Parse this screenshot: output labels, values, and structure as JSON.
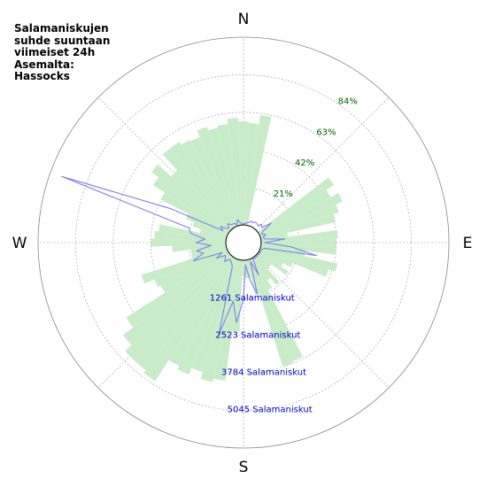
{
  "title_lines": [
    "Salamaniskujen",
    "suhde suuntaan",
    "viimeiset 24h",
    "Asemalta:",
    "Hassocks"
  ],
  "colors": {
    "bars": "#c8ecc8",
    "line": "#8080f0",
    "percent_labels": "#006400",
    "count_labels": "#0000cc",
    "grid": "#999999"
  },
  "chart_data": {
    "type": "polar",
    "title": "Salamaniskujen suhde suuntaan viimeiset 24h Asemalta: Hassocks",
    "directions": [
      "N",
      "E",
      "S",
      "W"
    ],
    "percent_ticks": [
      {
        "value": 21,
        "label": "21%"
      },
      {
        "value": 42,
        "label": "42%"
      },
      {
        "value": 63,
        "label": "63%"
      },
      {
        "value": 84,
        "label": "84%"
      }
    ],
    "count_ticks": [
      {
        "value": 1261,
        "label": "1261 Salamaniskut"
      },
      {
        "value": 2523,
        "label": "2523 Salamaniskut"
      },
      {
        "value": 3784,
        "label": "3784 Salamaniskut"
      },
      {
        "value": 5045,
        "label": "5045 Salamaniskut"
      }
    ],
    "sector_width_deg": 5,
    "series": [
      {
        "type": "bar",
        "unit": "%",
        "values": [
          [
            0,
            58
          ],
          [
            5,
            57
          ],
          [
            10,
            62
          ],
          [
            15,
            0
          ],
          [
            20,
            0
          ],
          [
            25,
            0
          ],
          [
            30,
            0
          ],
          [
            35,
            0
          ],
          [
            40,
            0
          ],
          [
            45,
            0
          ],
          [
            50,
            0
          ],
          [
            55,
            50
          ],
          [
            60,
            45
          ],
          [
            65,
            50
          ],
          [
            70,
            46
          ],
          [
            75,
            43
          ],
          [
            80,
            15
          ],
          [
            85,
            43
          ],
          [
            90,
            42
          ],
          [
            95,
            42
          ],
          [
            100,
            25
          ],
          [
            105,
            44
          ],
          [
            110,
            40
          ],
          [
            115,
            20
          ],
          [
            120,
            15
          ],
          [
            125,
            20
          ],
          [
            130,
            10
          ],
          [
            135,
            10
          ],
          [
            140,
            20
          ],
          [
            145,
            15
          ],
          [
            150,
            20
          ],
          [
            155,
            62
          ],
          [
            160,
            63
          ],
          [
            165,
            20
          ],
          [
            170,
            10
          ],
          [
            175,
            10
          ],
          [
            180,
            8
          ],
          [
            185,
            40
          ],
          [
            190,
            68
          ],
          [
            195,
            70
          ],
          [
            200,
            66
          ],
          [
            205,
            70
          ],
          [
            210,
            68
          ],
          [
            215,
            82
          ],
          [
            220,
            80
          ],
          [
            225,
            80
          ],
          [
            230,
            75
          ],
          [
            235,
            68
          ],
          [
            240,
            42
          ],
          [
            245,
            44
          ],
          [
            250,
            50
          ],
          [
            255,
            20
          ],
          [
            260,
            20
          ],
          [
            265,
            30
          ],
          [
            270,
            42
          ],
          [
            275,
            40
          ],
          [
            280,
            38
          ],
          [
            285,
            15
          ],
          [
            290,
            20
          ],
          [
            295,
            25
          ],
          [
            300,
            42
          ],
          [
            305,
            50
          ],
          [
            310,
            55
          ],
          [
            315,
            45
          ],
          [
            320,
            57
          ],
          [
            325,
            57
          ],
          [
            330,
            55
          ],
          [
            335,
            54
          ],
          [
            340,
            58
          ],
          [
            345,
            56
          ],
          [
            350,
            57
          ],
          [
            355,
            60
          ]
        ]
      },
      {
        "type": "line",
        "unit": "Salamaniskut",
        "values": [
          [
            0,
            30
          ],
          [
            5,
            60
          ],
          [
            10,
            80
          ],
          [
            15,
            110
          ],
          [
            20,
            170
          ],
          [
            25,
            150
          ],
          [
            30,
            200
          ],
          [
            35,
            190
          ],
          [
            40,
            150
          ],
          [
            45,
            270
          ],
          [
            50,
            200
          ],
          [
            55,
            540
          ],
          [
            60,
            160
          ],
          [
            65,
            80
          ],
          [
            70,
            200
          ],
          [
            75,
            90
          ],
          [
            80,
            130
          ],
          [
            85,
            800
          ],
          [
            90,
            120
          ],
          [
            95,
            1000
          ],
          [
            100,
            1900
          ],
          [
            105,
            140
          ],
          [
            110,
            70
          ],
          [
            115,
            60
          ],
          [
            120,
            40
          ],
          [
            125,
            60
          ],
          [
            130,
            40
          ],
          [
            135,
            60
          ],
          [
            140,
            40
          ],
          [
            145,
            60
          ],
          [
            150,
            40
          ],
          [
            155,
            600
          ],
          [
            160,
            80
          ],
          [
            165,
            1200
          ],
          [
            170,
            700
          ],
          [
            175,
            160
          ],
          [
            180,
            1300
          ],
          [
            185,
            2100
          ],
          [
            190,
            1400
          ],
          [
            195,
            2600
          ],
          [
            200,
            800
          ],
          [
            205,
            300
          ],
          [
            210,
            200
          ],
          [
            215,
            160
          ],
          [
            220,
            130
          ],
          [
            225,
            300
          ],
          [
            230,
            200
          ],
          [
            235,
            150
          ],
          [
            240,
            450
          ],
          [
            245,
            200
          ],
          [
            250,
            1200
          ],
          [
            255,
            800
          ],
          [
            260,
            1000
          ],
          [
            265,
            500
          ],
          [
            270,
            1000
          ],
          [
            275,
            700
          ],
          [
            280,
            1200
          ],
          [
            285,
            1300
          ],
          [
            290,
            5900
          ],
          [
            295,
            2100
          ],
          [
            300,
            200
          ],
          [
            305,
            350
          ],
          [
            310,
            150
          ],
          [
            315,
            100
          ],
          [
            320,
            230
          ],
          [
            325,
            150
          ],
          [
            330,
            120
          ],
          [
            335,
            120
          ],
          [
            340,
            40
          ],
          [
            345,
            200
          ],
          [
            350,
            100
          ],
          [
            355,
            40
          ]
        ]
      }
    ]
  }
}
